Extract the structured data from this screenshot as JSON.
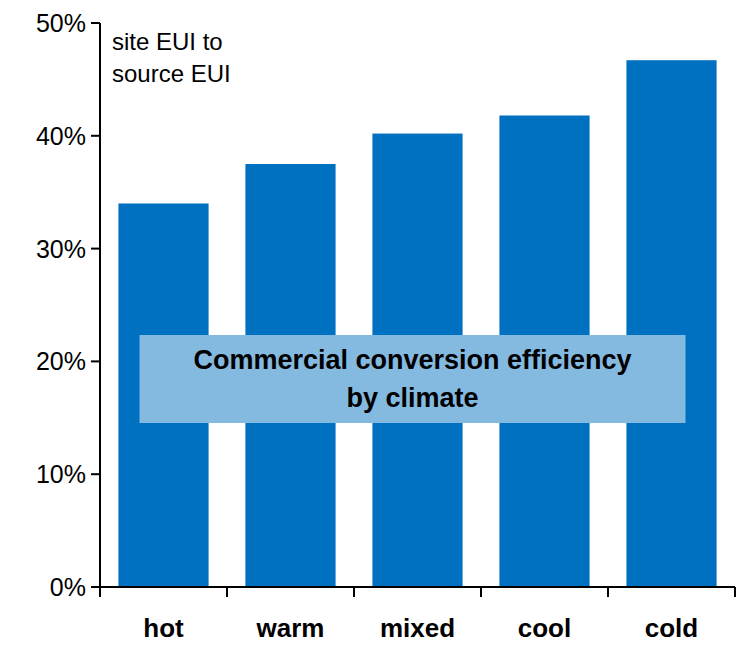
{
  "chart_data": {
    "type": "bar",
    "title": "Commercial conversion efficiency by climate",
    "y_label": "site EUI to source EUI",
    "categories": [
      "hot",
      "warm",
      "mixed",
      "cool",
      "cold"
    ],
    "values": [
      34.0,
      37.5,
      40.2,
      41.8,
      46.7
    ],
    "color": "#0070c0",
    "ylim": [
      0,
      50
    ],
    "yticks": [
      {
        "value": 0,
        "label": "0%"
      },
      {
        "value": 10,
        "label": "10%"
      },
      {
        "value": 20,
        "label": "20%"
      },
      {
        "value": 30,
        "label": "30%"
      },
      {
        "value": 40,
        "label": "40%"
      },
      {
        "value": 50,
        "label": "50%"
      }
    ],
    "grid": false
  }
}
